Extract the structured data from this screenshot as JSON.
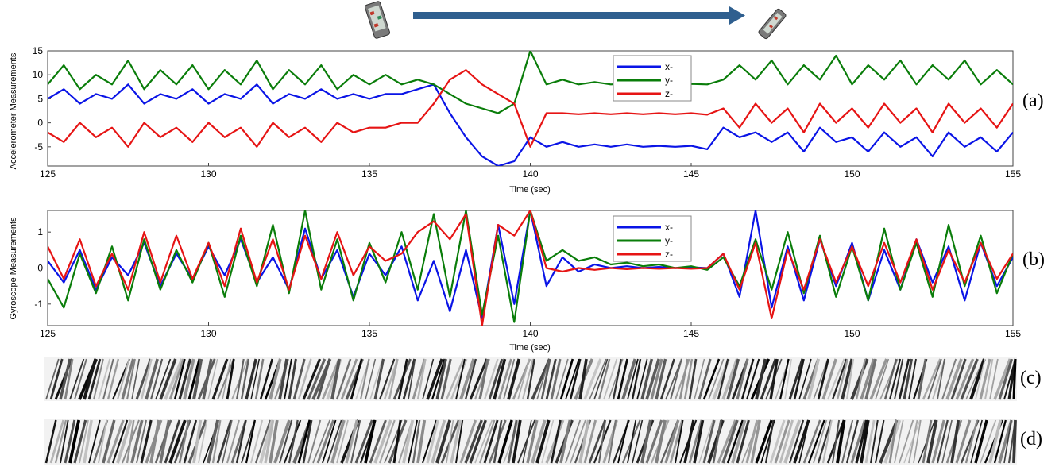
{
  "panel_labels": [
    "(a)",
    "(b)",
    "(c)",
    "(d)"
  ],
  "colors": {
    "x": "#0a14e6",
    "y": "#0a7d0a",
    "z": "#e61414",
    "arrow": "#2f5f8f",
    "axis": "#444444"
  },
  "icons": {
    "phone_before": "phone-upright-icon",
    "phone_after": "phone-tilted-icon",
    "arrow": "transition-arrow-icon"
  },
  "chart_data": [
    {
      "type": "line",
      "xlabel": "Time (sec)",
      "ylabel": "Accelerometer Measurements",
      "xlim": [
        125,
        155
      ],
      "ylim": [
        -9,
        15
      ],
      "xticks": [
        125,
        130,
        135,
        140,
        145,
        150,
        155
      ],
      "yticks": [
        15,
        10,
        5,
        0,
        -5
      ],
      "legend": {
        "placement": "top-center-right",
        "entries": [
          "x-",
          "y-",
          "z-"
        ]
      },
      "series": [
        {
          "name": "x-",
          "color": "#0a14e6",
          "x": [
            125,
            125.5,
            126,
            126.5,
            127,
            127.5,
            128,
            128.5,
            129,
            129.5,
            130,
            130.5,
            131,
            131.5,
            132,
            132.5,
            133,
            133.5,
            134,
            134.5,
            135,
            135.5,
            136,
            136.5,
            137,
            137.5,
            138,
            138.5,
            139,
            139.5,
            140,
            140.5,
            141,
            141.5,
            142,
            142.5,
            143,
            143.5,
            144,
            144.5,
            145,
            145.5,
            146,
            146.5,
            147,
            147.5,
            148,
            148.5,
            149,
            149.5,
            150,
            150.5,
            151,
            151.5,
            152,
            152.5,
            153,
            153.5,
            154,
            154.5,
            155
          ],
          "y": [
            5,
            7,
            4,
            6,
            5,
            8,
            4,
            6,
            5,
            7,
            4,
            6,
            5,
            8,
            4,
            6,
            5,
            7,
            5,
            6,
            5,
            6,
            6,
            7,
            8,
            2,
            -3,
            -7,
            -9,
            -8,
            -3,
            -5,
            -4,
            -5,
            -4.5,
            -5,
            -4.5,
            -5,
            -4.8,
            -5,
            -4.8,
            -5.5,
            -1,
            -3,
            -2,
            -4,
            -2,
            -6,
            -1,
            -4,
            -3,
            -6,
            -2,
            -5,
            -3,
            -7,
            -2,
            -5,
            -3,
            -6,
            -2
          ]
        },
        {
          "name": "y-",
          "color": "#0a7d0a",
          "x": [
            125,
            125.5,
            126,
            126.5,
            127,
            127.5,
            128,
            128.5,
            129,
            129.5,
            130,
            130.5,
            131,
            131.5,
            132,
            132.5,
            133,
            133.5,
            134,
            134.5,
            135,
            135.5,
            136,
            136.5,
            137,
            137.5,
            138,
            138.5,
            139,
            139.5,
            140,
            140.5,
            141,
            141.5,
            142,
            142.5,
            143,
            143.5,
            144,
            144.5,
            145,
            145.5,
            146,
            146.5,
            147,
            147.5,
            148,
            148.5,
            149,
            149.5,
            150,
            150.5,
            151,
            151.5,
            152,
            152.5,
            153,
            153.5,
            154,
            154.5,
            155
          ],
          "y": [
            8,
            12,
            7,
            10,
            8,
            13,
            7,
            11,
            8,
            12,
            7,
            11,
            8,
            13,
            7,
            11,
            8,
            12,
            7,
            10,
            8,
            10,
            8,
            9,
            8,
            6,
            4,
            3,
            2,
            4,
            15,
            8,
            9,
            8,
            8.5,
            8,
            8.2,
            8,
            8.2,
            8,
            8.1,
            8,
            9,
            12,
            9,
            13,
            8,
            12,
            9,
            14,
            8,
            12,
            9,
            13,
            8,
            12,
            9,
            13,
            8,
            11,
            8
          ]
        },
        {
          "name": "z-",
          "color": "#e61414",
          "x": [
            125,
            125.5,
            126,
            126.5,
            127,
            127.5,
            128,
            128.5,
            129,
            129.5,
            130,
            130.5,
            131,
            131.5,
            132,
            132.5,
            133,
            133.5,
            134,
            134.5,
            135,
            135.5,
            136,
            136.5,
            137,
            137.5,
            138,
            138.5,
            139,
            139.5,
            140,
            140.5,
            141,
            141.5,
            142,
            142.5,
            143,
            143.5,
            144,
            144.5,
            145,
            145.5,
            146,
            146.5,
            147,
            147.5,
            148,
            148.5,
            149,
            149.5,
            150,
            150.5,
            151,
            151.5,
            152,
            152.5,
            153,
            153.5,
            154,
            154.5,
            155
          ],
          "y": [
            -2,
            -4,
            0,
            -3,
            -1,
            -5,
            0,
            -3,
            -1,
            -4,
            0,
            -3,
            -1,
            -5,
            0,
            -3,
            -1,
            -4,
            0,
            -2,
            -1,
            -1,
            0,
            0,
            4,
            9,
            11,
            8,
            6,
            4,
            -5,
            2,
            2,
            1.8,
            2,
            1.8,
            2,
            1.8,
            2,
            1.8,
            2,
            1.7,
            3,
            -1,
            4,
            0,
            3,
            -2,
            4,
            0,
            3,
            -1,
            4,
            0,
            3,
            -2,
            4,
            0,
            3,
            -1,
            4
          ]
        }
      ]
    },
    {
      "type": "line",
      "xlabel": "Time (sec)",
      "ylabel": "Gyroscope Measurements",
      "xlim": [
        125,
        155
      ],
      "ylim": [
        -1.6,
        1.6
      ],
      "xticks": [
        125,
        130,
        135,
        140,
        145,
        150,
        155
      ],
      "yticks": [
        1,
        0,
        -1
      ],
      "legend": {
        "placement": "top-center-right",
        "entries": [
          "x-",
          "y-",
          "z-"
        ]
      },
      "series": [
        {
          "name": "x-",
          "color": "#0a14e6",
          "x": [
            125,
            125.5,
            126,
            126.5,
            127,
            127.5,
            128,
            128.5,
            129,
            129.5,
            130,
            130.5,
            131,
            131.5,
            132,
            132.5,
            133,
            133.5,
            134,
            134.5,
            135,
            135.5,
            136,
            136.5,
            137,
            137.5,
            138,
            138.5,
            139,
            139.5,
            140,
            140.5,
            141,
            141.5,
            142,
            142.5,
            143,
            143.5,
            144,
            144.5,
            145,
            145.5,
            146,
            146.5,
            147,
            147.5,
            148,
            148.5,
            149,
            149.5,
            150,
            150.5,
            151,
            151.5,
            152,
            152.5,
            153,
            153.5,
            154,
            154.5,
            155
          ],
          "y": [
            0.2,
            -0.4,
            0.5,
            -0.6,
            0.3,
            -0.2,
            0.7,
            -0.5,
            0.4,
            -0.3,
            0.6,
            -0.2,
            0.8,
            -0.4,
            0.3,
            -0.6,
            1.1,
            -0.3,
            0.5,
            -0.8,
            0.4,
            -0.2,
            0.6,
            -0.9,
            0.2,
            -1.2,
            0.5,
            -1.4,
            1.2,
            -1.0,
            1.6,
            -0.5,
            0.3,
            -0.1,
            0.1,
            0.0,
            0.05,
            0.0,
            0.03,
            0.0,
            0.02,
            0.0,
            0.4,
            -0.8,
            1.6,
            -1.1,
            0.6,
            -0.9,
            0.8,
            -0.5,
            0.7,
            -0.9,
            0.5,
            -0.6,
            0.8,
            -0.4,
            0.6,
            -0.9,
            0.7,
            -0.5,
            0.3
          ]
        },
        {
          "name": "y-",
          "color": "#0a7d0a",
          "x": [
            125,
            125.5,
            126,
            126.5,
            127,
            127.5,
            128,
            128.5,
            129,
            129.5,
            130,
            130.5,
            131,
            131.5,
            132,
            132.5,
            133,
            133.5,
            134,
            134.5,
            135,
            135.5,
            136,
            136.5,
            137,
            137.5,
            138,
            138.5,
            139,
            139.5,
            140,
            140.5,
            141,
            141.5,
            142,
            142.5,
            143,
            143.5,
            144,
            144.5,
            145,
            145.5,
            146,
            146.5,
            147,
            147.5,
            148,
            148.5,
            149,
            149.5,
            150,
            150.5,
            151,
            151.5,
            152,
            152.5,
            153,
            153.5,
            154,
            154.5,
            155
          ],
          "y": [
            -0.3,
            -1.1,
            0.4,
            -0.7,
            0.6,
            -0.9,
            0.8,
            -0.6,
            0.5,
            -0.4,
            0.7,
            -0.8,
            0.9,
            -0.5,
            1.2,
            -0.7,
            1.6,
            -0.6,
            0.8,
            -0.9,
            0.7,
            -0.4,
            1.0,
            -0.6,
            1.5,
            -0.8,
            1.6,
            -1.3,
            0.9,
            -1.5,
            1.6,
            0.2,
            0.5,
            0.2,
            0.3,
            0.1,
            0.15,
            0.05,
            0.1,
            0.0,
            0.05,
            -0.05,
            0.3,
            -0.5,
            0.8,
            -0.6,
            1.0,
            -0.7,
            0.9,
            -0.8,
            0.6,
            -0.9,
            1.1,
            -0.6,
            0.7,
            -0.8,
            1.2,
            -0.5,
            0.9,
            -0.7,
            0.4
          ]
        },
        {
          "name": "z-",
          "color": "#e61414",
          "x": [
            125,
            125.5,
            126,
            126.5,
            127,
            127.5,
            128,
            128.5,
            129,
            129.5,
            130,
            130.5,
            131,
            131.5,
            132,
            132.5,
            133,
            133.5,
            134,
            134.5,
            135,
            135.5,
            136,
            136.5,
            137,
            137.5,
            138,
            138.5,
            139,
            139.5,
            140,
            140.5,
            141,
            141.5,
            142,
            142.5,
            143,
            143.5,
            144,
            144.5,
            145,
            145.5,
            146,
            146.5,
            147,
            147.5,
            148,
            148.5,
            149,
            149.5,
            150,
            150.5,
            151,
            151.5,
            152,
            152.5,
            153,
            153.5,
            154,
            154.5,
            155
          ],
          "y": [
            0.6,
            -0.3,
            0.8,
            -0.5,
            0.4,
            -0.6,
            1.0,
            -0.4,
            0.9,
            -0.3,
            0.7,
            -0.5,
            1.1,
            -0.4,
            0.8,
            -0.6,
            0.9,
            -0.3,
            1.0,
            -0.2,
            0.6,
            0.2,
            0.4,
            1.0,
            1.3,
            0.8,
            1.5,
            -1.6,
            1.2,
            0.9,
            1.6,
            0.0,
            -0.1,
            0.0,
            -0.05,
            0.0,
            -0.03,
            0.0,
            -0.02,
            0.0,
            -0.02,
            0.0,
            0.4,
            -0.6,
            0.7,
            -1.4,
            0.5,
            -0.6,
            0.8,
            -0.4,
            0.6,
            -0.5,
            0.7,
            -0.4,
            0.8,
            -0.6,
            0.5,
            -0.4,
            0.7,
            -0.3,
            0.4
          ]
        }
      ]
    }
  ],
  "strips": [
    {
      "label": "(c)",
      "style": "grayscale-texture"
    },
    {
      "label": "(d)",
      "style": "grayscale-texture"
    }
  ]
}
